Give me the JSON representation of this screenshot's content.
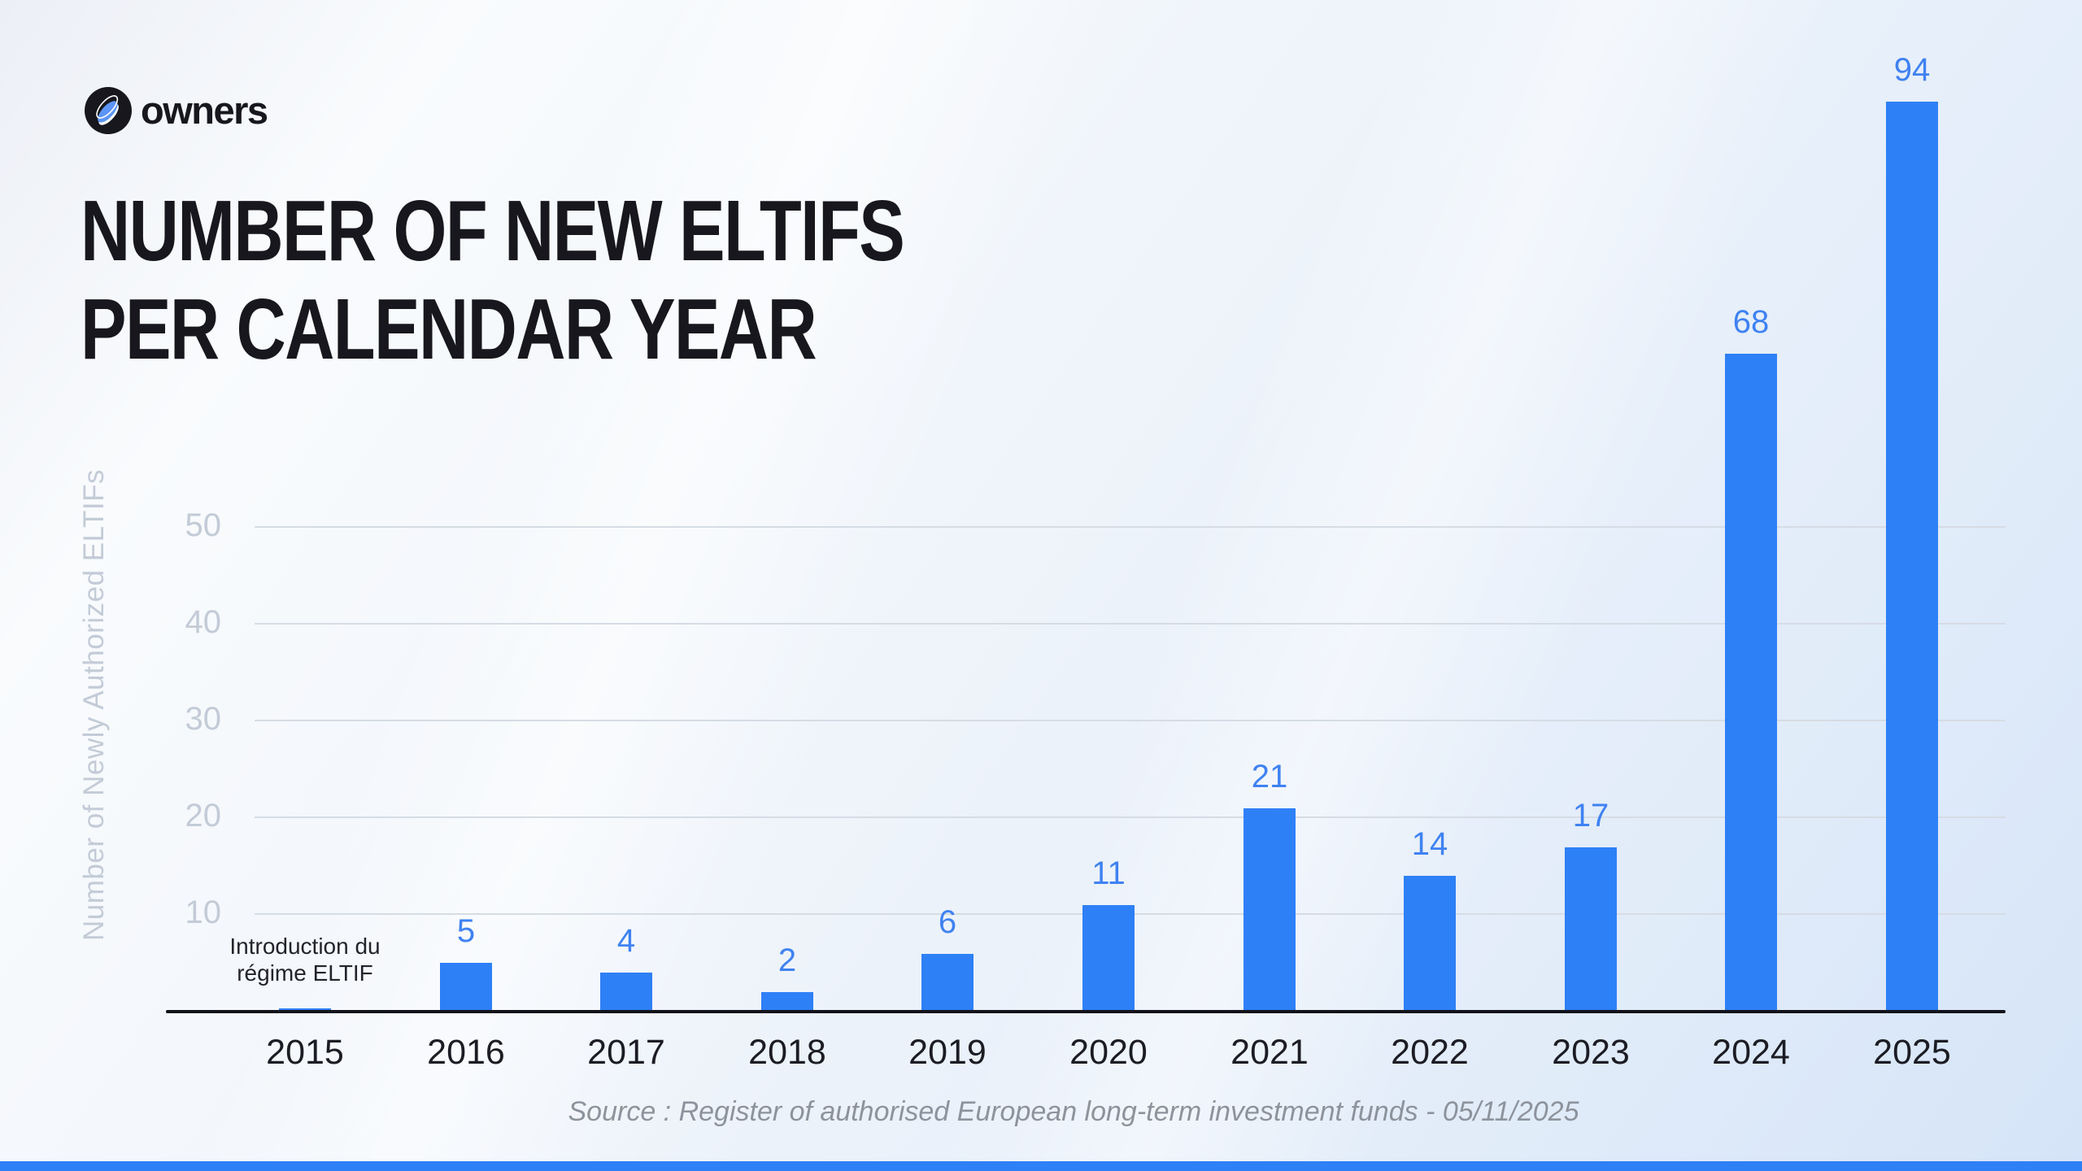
{
  "brand": {
    "name": "owners"
  },
  "title": {
    "line1": "NUMBER OF NEW ELTIFS",
    "line2": "PER CALENDAR YEAR"
  },
  "chart_data": {
    "type": "bar",
    "title": "Number of new ELTIFs per calendar year",
    "categories": [
      "2015",
      "2016",
      "2017",
      "2018",
      "2019",
      "2020",
      "2021",
      "2022",
      "2023",
      "2024",
      "2025"
    ],
    "values": [
      null,
      5,
      4,
      2,
      6,
      11,
      21,
      14,
      17,
      68,
      94
    ],
    "xlabel": "",
    "ylabel": "Number of Newly Authorized ELTIFs",
    "yticks": [
      10,
      20,
      30,
      40,
      50
    ],
    "ylim": [
      0,
      100
    ],
    "grid": "horizontal",
    "legend": false,
    "bar_color": "#2e80f6",
    "value_label_color": "#3f82f2",
    "annotation": {
      "category": "2015",
      "lines": [
        "Introduction du",
        "régime ELTIF"
      ]
    }
  },
  "source": {
    "text": "Source : Register of authorised European long-term investment funds - 05/11/2025"
  },
  "footer": {
    "accent_color": "#2e80f6"
  }
}
